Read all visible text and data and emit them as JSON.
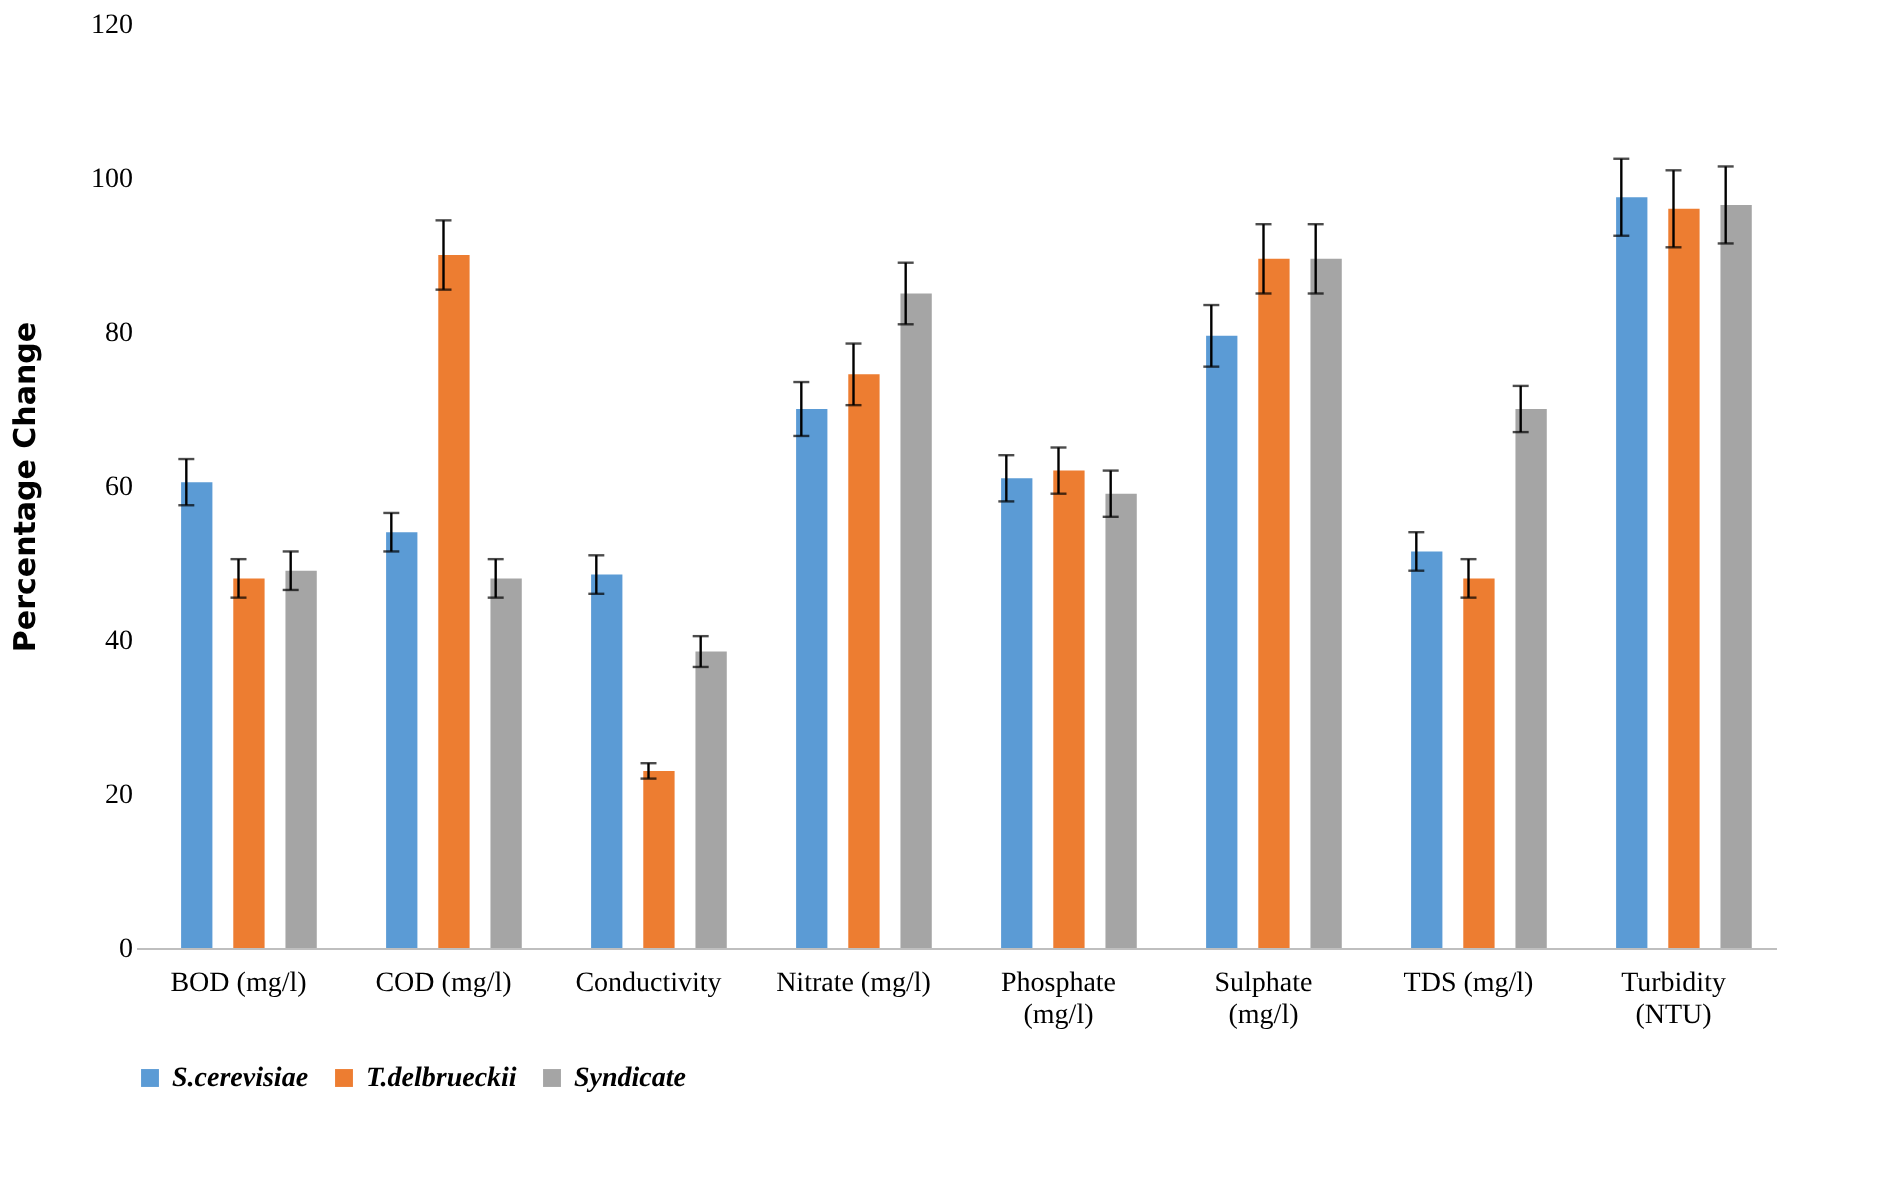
{
  "chart_data": {
    "type": "bar",
    "ylabel": "Percentage Change",
    "categories": [
      "BOD (mg/l)",
      "COD (mg/l)",
      "Conductivity",
      "Nitrate (mg/l)",
      "Phosphate\n(mg/l)",
      "Sulphate\n(mg/l)",
      "TDS (mg/l)",
      "Turbidity\n(NTU)"
    ],
    "series": [
      {
        "name": "S.cerevisiae",
        "color": "#5b9bd5",
        "values": [
          60.5,
          54,
          48.5,
          70,
          61,
          79.5,
          51.5,
          97.5
        ],
        "errors": [
          3,
          2.5,
          2.5,
          3.5,
          3,
          4,
          2.5,
          5
        ]
      },
      {
        "name": "T.delbrueckii",
        "color": "#ed7d31",
        "values": [
          48,
          90,
          23,
          74.5,
          62,
          89.5,
          48,
          96
        ],
        "errors": [
          2.5,
          4.5,
          1,
          4,
          3,
          4.5,
          2.5,
          5
        ]
      },
      {
        "name": "Syndicate",
        "color": "#a5a5a5",
        "values": [
          49,
          48,
          38.5,
          85,
          59,
          89.5,
          70,
          96.5
        ],
        "errors": [
          2.5,
          2.5,
          2,
          4,
          3,
          4.5,
          3,
          5
        ]
      }
    ],
    "ylim": [
      0,
      120
    ],
    "yticks": [
      0,
      20,
      40,
      60,
      80,
      100,
      120
    ],
    "grid": false,
    "legend": "bottom"
  }
}
